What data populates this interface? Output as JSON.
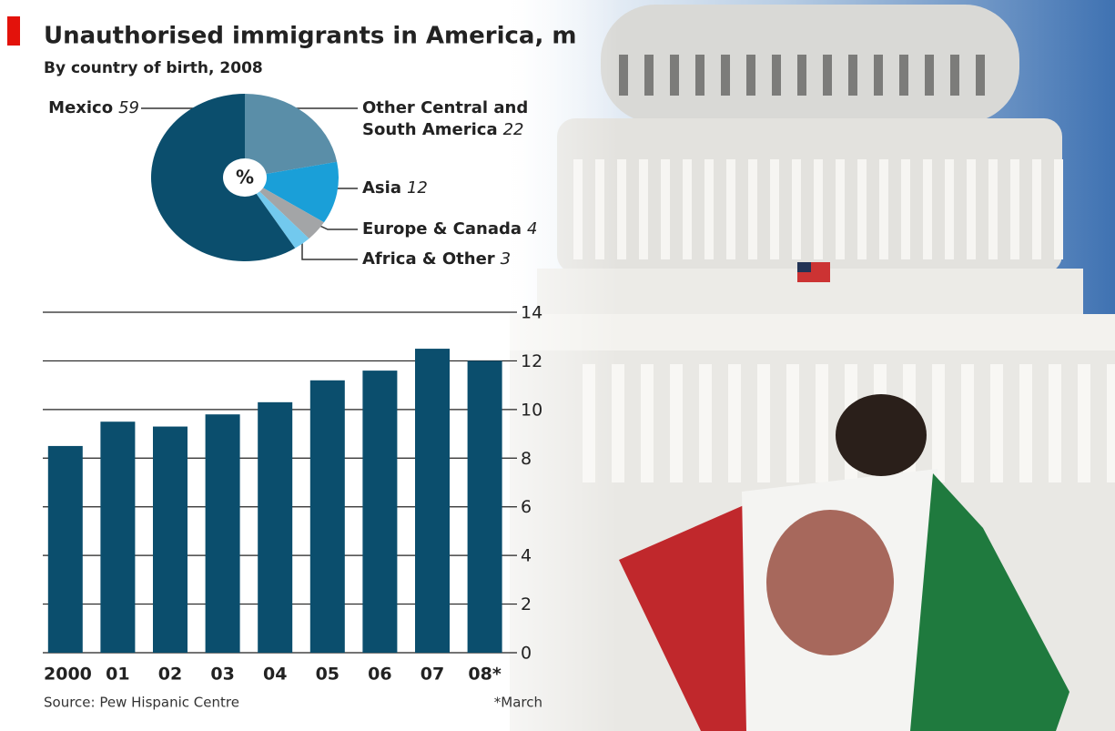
{
  "chart_data": [
    {
      "type": "pie",
      "title": "Unauthorised immigrants in America, m",
      "subtitle": "By country of birth, 2008",
      "center_label": "%",
      "categories": [
        "Other Central and South America",
        "Asia",
        "Europe & Canada",
        "Africa & Other",
        "Mexico"
      ],
      "values": [
        22,
        12,
        4,
        3,
        59
      ],
      "colors": [
        "#5a8ea8",
        "#1a9fd8",
        "#a3a5a7",
        "#72c9ee",
        "#0b4e6d"
      ]
    },
    {
      "type": "bar",
      "categories": [
        "2000",
        "01",
        "02",
        "03",
        "04",
        "05",
        "06",
        "07",
        "08*"
      ],
      "values": [
        8.5,
        9.5,
        9.3,
        9.8,
        10.3,
        11.2,
        11.6,
        12.5,
        12.0
      ],
      "color": "#0b4e6d",
      "ylim": [
        0,
        14
      ],
      "yticks": [
        0,
        2,
        4,
        6,
        8,
        10,
        12,
        14
      ],
      "grid": true,
      "note": "*March",
      "source": "Source: Pew Hispanic Centre"
    }
  ]
}
